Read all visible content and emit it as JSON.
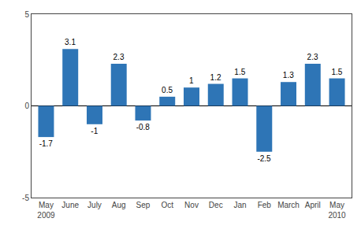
{
  "chart_data": {
    "type": "bar",
    "categories": [
      "May\n2009",
      "June",
      "July",
      "Aug",
      "Sep",
      "Oct",
      "Nov",
      "Dec",
      "Jan",
      "Feb",
      "March",
      "April",
      "May\n2010"
    ],
    "values": [
      -1.7,
      3.1,
      -1.0,
      2.3,
      -0.8,
      0.5,
      1.0,
      1.2,
      1.5,
      -2.5,
      1.3,
      2.3,
      1.5
    ],
    "color": "#2E75B6",
    "ylim": [
      -5,
      5
    ],
    "yticks": [
      -5,
      0,
      5
    ],
    "grid": false,
    "data_labels": true
  }
}
